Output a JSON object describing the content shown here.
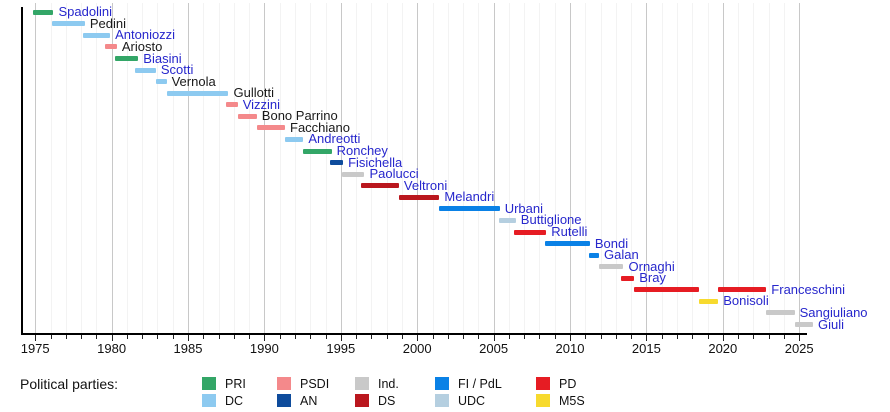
{
  "chart_data": {
    "type": "bar",
    "subtype": "horizontal-timeline-gantt",
    "title": "",
    "xlabel": "",
    "ylabel": "",
    "grid": true,
    "x_axis": {
      "min": 1974.1,
      "max": 2025.4,
      "minor_tick_interval": 1,
      "major_ticks": [
        1975,
        1980,
        1985,
        1990,
        1995,
        2000,
        2005,
        2010,
        2015,
        2020,
        2025
      ]
    },
    "ministers": [
      {
        "name": "Spadolini",
        "party": "PRI",
        "link": true,
        "terms": [
          [
            1974.85,
            1976.2
          ]
        ]
      },
      {
        "name": "Pedini",
        "party": "DC",
        "link": false,
        "terms": [
          [
            1976.1,
            1978.25
          ]
        ]
      },
      {
        "name": "Antoniozzi",
        "party": "DC",
        "link": true,
        "terms": [
          [
            1978.15,
            1979.9
          ]
        ]
      },
      {
        "name": "Ariosto",
        "party": "PSDI",
        "link": false,
        "terms": [
          [
            1979.55,
            1980.35
          ]
        ]
      },
      {
        "name": "Biasini",
        "party": "PRI",
        "link": true,
        "terms": [
          [
            1980.2,
            1981.75
          ]
        ]
      },
      {
        "name": "Scotti",
        "party": "DC",
        "link": true,
        "terms": [
          [
            1981.55,
            1982.9
          ]
        ]
      },
      {
        "name": "Vernola",
        "party": "DC",
        "link": false,
        "terms": [
          [
            1982.9,
            1983.6
          ]
        ]
      },
      {
        "name": "Gullotti",
        "party": "DC",
        "link": false,
        "terms": [
          [
            1983.6,
            1987.65
          ]
        ]
      },
      {
        "name": "Vizzini",
        "party": "PSDI",
        "link": true,
        "terms": [
          [
            1987.5,
            1988.25
          ]
        ]
      },
      {
        "name": "Bono Parrino",
        "party": "PSDI",
        "link": false,
        "terms": [
          [
            1988.25,
            1989.5
          ]
        ]
      },
      {
        "name": "Facchiano",
        "party": "PSDI",
        "link": false,
        "terms": [
          [
            1989.5,
            1991.35
          ]
        ]
      },
      {
        "name": "Andreotti",
        "party": "DC",
        "link": true,
        "terms": [
          [
            1991.35,
            1992.55
          ]
        ]
      },
      {
        "name": "Ronchey",
        "party": "PRI",
        "link": true,
        "terms": [
          [
            1992.5,
            1994.4
          ]
        ]
      },
      {
        "name": "Fisichella",
        "party": "AN",
        "link": true,
        "terms": [
          [
            1994.3,
            1995.15
          ]
        ]
      },
      {
        "name": "Paolucci",
        "party": "Ind",
        "link": true,
        "terms": [
          [
            1995.1,
            1996.55
          ]
        ]
      },
      {
        "name": "Veltroni",
        "party": "DS",
        "link": true,
        "terms": [
          [
            1996.35,
            1998.8
          ]
        ]
      },
      {
        "name": "Melandri",
        "party": "DS",
        "link": true,
        "terms": [
          [
            1998.8,
            2001.45
          ]
        ]
      },
      {
        "name": "Urbani",
        "party": "FI",
        "link": true,
        "terms": [
          [
            2001.4,
            2005.4
          ]
        ]
      },
      {
        "name": "Buttiglione",
        "party": "UDC",
        "link": true,
        "terms": [
          [
            2005.35,
            2006.45
          ]
        ]
      },
      {
        "name": "Rutelli",
        "party": "PD",
        "link": true,
        "terms": [
          [
            2006.3,
            2008.45
          ]
        ]
      },
      {
        "name": "Bondi",
        "party": "FI",
        "link": true,
        "terms": [
          [
            2008.35,
            2011.3
          ]
        ]
      },
      {
        "name": "Galan",
        "party": "FI",
        "link": true,
        "terms": [
          [
            2011.25,
            2011.9
          ]
        ]
      },
      {
        "name": "Ornaghi",
        "party": "Ind",
        "link": true,
        "terms": [
          [
            2011.9,
            2013.5
          ]
        ]
      },
      {
        "name": "Bray",
        "party": "PD",
        "link": true,
        "terms": [
          [
            2013.35,
            2014.2
          ]
        ]
      },
      {
        "name": "Franceschini",
        "party": "PD",
        "link": true,
        "terms": [
          [
            2014.2,
            2018.45
          ],
          [
            2019.7,
            2022.85
          ]
        ]
      },
      {
        "name": "Bonisoli",
        "party": "M5S",
        "link": true,
        "terms": [
          [
            2018.45,
            2019.7
          ]
        ]
      },
      {
        "name": "Sangiuliano",
        "party": "Ind",
        "link": true,
        "terms": [
          [
            2022.85,
            2024.7
          ]
        ]
      },
      {
        "name": "Giuli",
        "party": "Ind",
        "link": true,
        "terms": [
          [
            2024.7,
            2025.9
          ]
        ]
      }
    ]
  },
  "party_colors": {
    "PRI": "#33a667",
    "DC": "#8dcaf0",
    "PSDI": "#f4898b",
    "AN": "#0e4c9c",
    "Ind": "#c9c9c9",
    "DS": "#ba171e",
    "FI": "#0a81e6",
    "UDC": "#b5cfe0",
    "PD": "#e61c23",
    "M5S": "#f7da2e"
  },
  "text_colors": {
    "link": "#2727cc",
    "plain": "#1a1a1a"
  },
  "legend": {
    "title": "Political parties:",
    "columns": [
      [
        {
          "key": "PRI",
          "label": "PRI"
        },
        {
          "key": "DC",
          "label": "DC"
        }
      ],
      [
        {
          "key": "PSDI",
          "label": "PSDI"
        },
        {
          "key": "AN",
          "label": "AN"
        }
      ],
      [
        {
          "key": "Ind",
          "label": "Ind."
        },
        {
          "key": "DS",
          "label": "DS"
        }
      ],
      [
        {
          "key": "FI",
          "label": "FI / PdL"
        },
        {
          "key": "UDC",
          "label": "UDC"
        }
      ],
      [
        {
          "key": "PD",
          "label": "PD"
        },
        {
          "key": "M5S",
          "label": "M5S"
        }
      ]
    ]
  }
}
